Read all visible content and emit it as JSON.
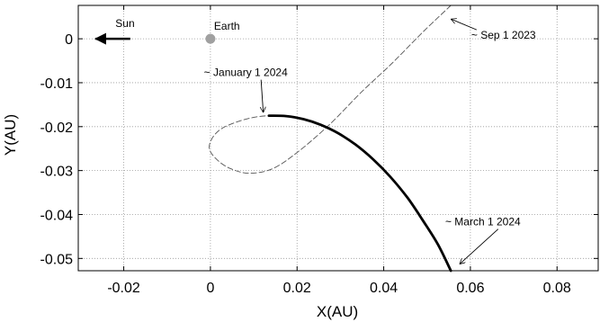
{
  "chart_data": {
    "type": "line",
    "title": "",
    "xlabel": "X(AU)",
    "ylabel": "Y(AU)",
    "xlim": [
      -0.0305,
      0.0895
    ],
    "ylim": [
      -0.0528,
      0.0076
    ],
    "xticks": [
      -0.02,
      0,
      0.02,
      0.04,
      0.06,
      0.08
    ],
    "yticks": [
      0,
      -0.01,
      -0.02,
      -0.03,
      -0.04,
      -0.05
    ],
    "xtick_labels": [
      "-0.02",
      "0",
      "0.02",
      "0.04",
      "0.06",
      "0.08"
    ],
    "ytick_labels": [
      "0",
      "-0.01",
      "-0.02",
      "-0.03",
      "-0.04",
      "-0.05"
    ],
    "grid": true,
    "series": [
      {
        "style": "dashed",
        "color": "#555555",
        "points": [
          [
            0.0555,
            0.0076
          ],
          [
            0.049,
            0.0015
          ],
          [
            0.042,
            -0.0055
          ],
          [
            0.035,
            -0.012
          ],
          [
            0.0275,
            -0.0195
          ],
          [
            0.0205,
            -0.0255
          ],
          [
            0.0145,
            -0.0295
          ],
          [
            0.009,
            -0.0306
          ],
          [
            0.0045,
            -0.0295
          ],
          [
            0.0015,
            -0.0275
          ],
          [
            -0.0002,
            -0.0252
          ],
          [
            0.0003,
            -0.0228
          ],
          [
            0.0025,
            -0.0205
          ],
          [
            0.0065,
            -0.0188
          ],
          [
            0.0105,
            -0.0178
          ],
          [
            0.0135,
            -0.0175
          ]
        ]
      },
      {
        "style": "solid",
        "color": "#000000",
        "points": [
          [
            0.0135,
            -0.0175
          ],
          [
            0.0175,
            -0.0176
          ],
          [
            0.0215,
            -0.0183
          ],
          [
            0.0255,
            -0.0196
          ],
          [
            0.0295,
            -0.0215
          ],
          [
            0.0335,
            -0.0241
          ],
          [
            0.0375,
            -0.0274
          ],
          [
            0.0415,
            -0.0314
          ],
          [
            0.0455,
            -0.0362
          ],
          [
            0.049,
            -0.0413
          ],
          [
            0.0525,
            -0.0468
          ],
          [
            0.0555,
            -0.0528
          ]
        ]
      }
    ],
    "markers": [
      {
        "name": "Earth",
        "label": "Earth",
        "x": 0.0,
        "y": 0.0,
        "color": "#a0a0a0"
      }
    ],
    "sun_arrow": {
      "label": "Sun",
      "x_from": -0.0185,
      "x_to": -0.0265,
      "y": 0.0
    },
    "annotations": [
      {
        "text": "~ Sep 1 2023",
        "tx": 0.0602,
        "ty": 0.0,
        "ax": 0.0555,
        "ay": 0.0045
      },
      {
        "text": "~ January 1 2024",
        "tx": -0.0015,
        "ty": -0.0085,
        "ax": 0.0122,
        "ay": -0.0168
      },
      {
        "text": "~ March 1 2024",
        "tx": 0.0542,
        "ty": -0.0425,
        "ax": 0.0575,
        "ay": -0.0513
      }
    ]
  }
}
